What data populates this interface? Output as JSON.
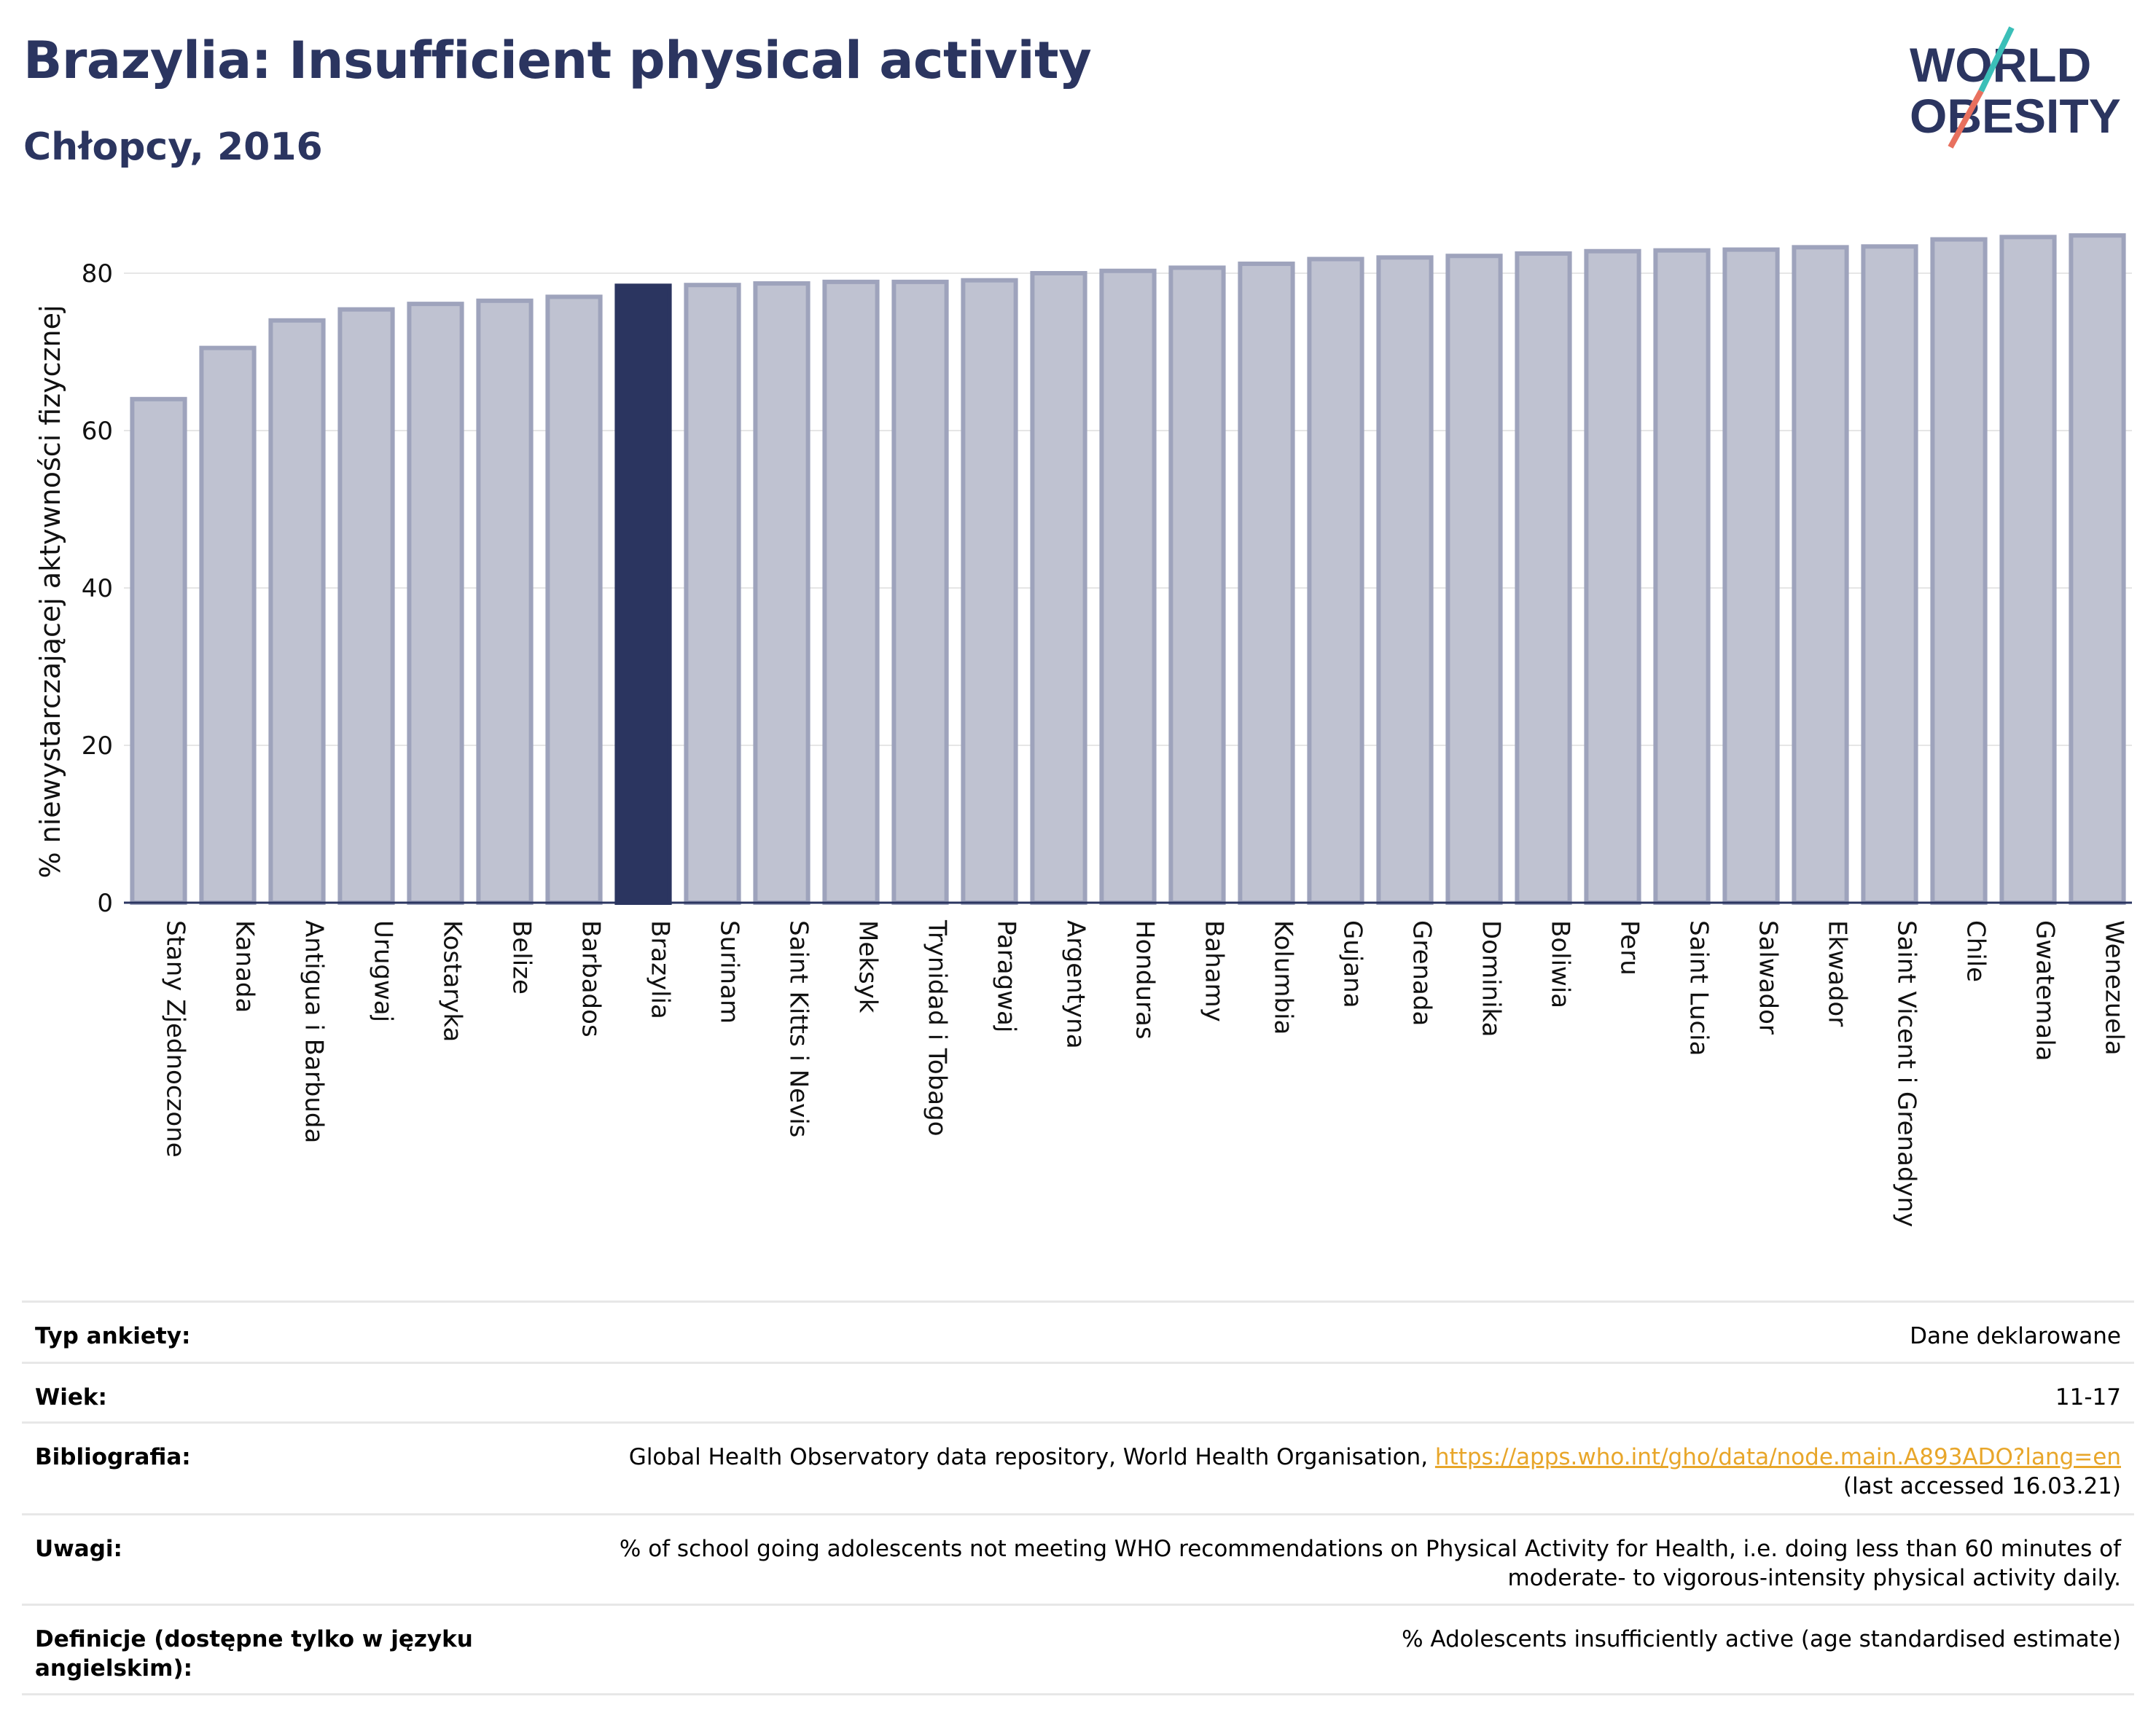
{
  "title": "Brazylia: Insufficient physical activity",
  "subtitle": "Chłopcy, 2016",
  "logo": {
    "line1": "WORLD",
    "line2": "OBESITY"
  },
  "colors": {
    "title": "#2b3560",
    "bar_default": "#bfc2d1",
    "bar_default_stroke": "#9ea3bc",
    "bar_highlight": "#2b3560",
    "logo_teal": "#3bbfb8",
    "logo_coral": "#e8705e",
    "link": "#e8a62a"
  },
  "chart_data": {
    "type": "bar",
    "ylabel": "% niewystarczającej aktywności fizycznej",
    "ylim": [
      0,
      85
    ],
    "yticks": [
      0,
      20,
      40,
      60,
      80
    ],
    "grid": true,
    "highlight": "Brazylia",
    "categories": [
      "Stany Zjednoczone",
      "Kanada",
      "Antigua i Barbuda",
      "Urugwaj",
      "Kostaryka",
      "Belize",
      "Barbados",
      "Brazylia",
      "Surinam",
      "Saint Kitts i Nevis",
      "Meksyk",
      "Trynidad i Tobago",
      "Paragwaj",
      "Argentyna",
      "Honduras",
      "Bahamy",
      "Kolumbia",
      "Gujana",
      "Grenada",
      "Dominika",
      "Boliwia",
      "Peru",
      "Saint Lucia",
      "Salwador",
      "Ekwador",
      "Saint Vicent i Grenadyny",
      "Chile",
      "Gwatemala",
      "Wenezuela"
    ],
    "values": [
      64.0,
      70.5,
      74.0,
      75.4,
      76.1,
      76.5,
      77.0,
      78.4,
      78.5,
      78.7,
      78.9,
      78.9,
      79.1,
      80.0,
      80.3,
      80.7,
      81.2,
      81.8,
      82.0,
      82.2,
      82.5,
      82.8,
      82.9,
      83.0,
      83.3,
      83.4,
      84.3,
      84.6,
      84.8
    ]
  },
  "info": {
    "survey_label": "Typ ankiety:",
    "survey_value": "Dane deklarowane",
    "age_label": "Wiek:",
    "age_value": "11-17",
    "bib_label": "Bibliografia:",
    "bib_text": "Global Health Observatory data repository, World Health Organisation, ",
    "bib_link": "https://apps.who.int/gho/data/node.main.A893ADO?lang=en",
    "bib_accessed": "(last accessed 16.03.21)",
    "notes_label": "Uwagi:",
    "notes_line1": "% of school going adolescents not meeting WHO recommendations on Physical Activity for Health, i.e. doing less than 60 minutes of",
    "notes_line2": "moderate- to vigorous-intensity physical activity daily.",
    "def_label": "Definicje (dostępne tylko w języku angielskim):",
    "def_value": "% Adolescents insufficiently active (age standardised estimate)"
  }
}
